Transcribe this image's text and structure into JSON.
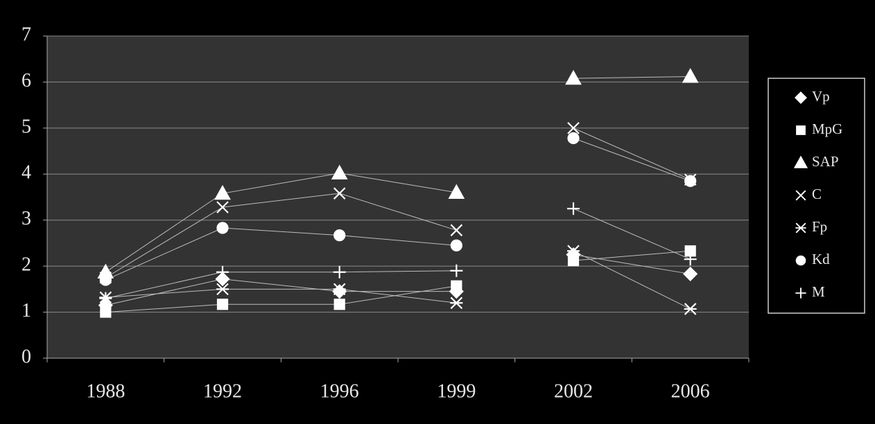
{
  "chart_data": {
    "type": "line",
    "categories": [
      "1988",
      "1992",
      "1996",
      "1999",
      "2002",
      "2006"
    ],
    "break_after_index": 3,
    "series": [
      {
        "name": "Vp",
        "marker": "diamond",
        "color": "#ffffff",
        "values": [
          1.15,
          1.72,
          1.45,
          1.45,
          2.25,
          1.83
        ]
      },
      {
        "name": "MpG",
        "marker": "square",
        "color": "#ffffff",
        "values": [
          1.0,
          1.17,
          1.17,
          1.57,
          2.12,
          2.33
        ]
      },
      {
        "name": "SAP",
        "marker": "triangle",
        "color": "#ffffff",
        "values": [
          1.87,
          3.58,
          4.02,
          3.6,
          6.08,
          6.12
        ]
      },
      {
        "name": "C",
        "marker": "x",
        "color": "#ffffff",
        "values": [
          1.75,
          3.28,
          3.58,
          2.78,
          5.0,
          3.88
        ]
      },
      {
        "name": "Fp",
        "marker": "star",
        "color": "#ffffff",
        "values": [
          1.32,
          1.5,
          1.5,
          1.2,
          2.33,
          1.07
        ]
      },
      {
        "name": "Kd",
        "marker": "circle",
        "color": "#ffffff",
        "values": [
          1.7,
          2.83,
          2.67,
          2.45,
          4.78,
          3.85
        ]
      },
      {
        "name": "M",
        "marker": "plus",
        "color": "#ffffff",
        "values": [
          1.3,
          1.87,
          1.87,
          1.9,
          3.25,
          2.15
        ]
      }
    ],
    "ylim": [
      0,
      7
    ],
    "yticks": [
      0,
      1,
      2,
      3,
      4,
      5,
      6,
      7
    ],
    "grid": true
  }
}
